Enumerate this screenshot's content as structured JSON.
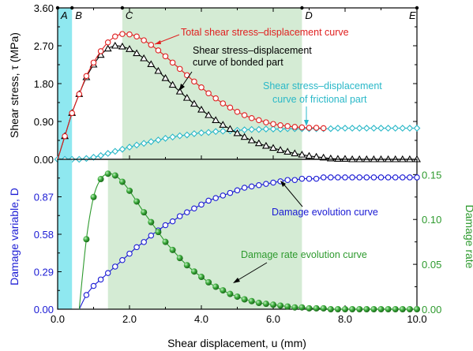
{
  "chart_data": [
    {
      "type": "line",
      "panel": "top",
      "ylabel": "Shear stress, τ (MPa)",
      "xlim": [
        0,
        10
      ],
      "ylim": [
        0,
        3.6
      ],
      "yticks": [
        "0.00",
        "0.90",
        "1.80",
        "2.70",
        "3.60"
      ],
      "stage_markers": [
        {
          "label": "A",
          "x": 0.0
        },
        {
          "label": "B",
          "x": 0.4
        },
        {
          "label": "C",
          "x": 1.8
        },
        {
          "label": "D",
          "x": 6.8
        },
        {
          "label": "E",
          "x": 10.0
        }
      ],
      "shaded_regions": [
        {
          "x0": 0.0,
          "x1": 0.4,
          "color": "#8fe8f0"
        },
        {
          "x0": 1.8,
          "x1": 6.8,
          "color": "#d4ebd4"
        }
      ],
      "series": [
        {
          "name": "Total shear stress–displacement curve",
          "color": "#e02020",
          "marker": "circle",
          "x": [
            0.0,
            0.2,
            0.4,
            0.6,
            0.8,
            1.0,
            1.2,
            1.4,
            1.6,
            1.8,
            2.0,
            2.2,
            2.4,
            2.6,
            2.8,
            3.0,
            3.2,
            3.4,
            3.6,
            3.8,
            4.0,
            4.2,
            4.4,
            4.6,
            4.8,
            5.0,
            5.2,
            5.4,
            5.6,
            5.8,
            6.0,
            6.2,
            6.4,
            6.6,
            6.8,
            7.0,
            7.2,
            7.4
          ],
          "y": [
            0.0,
            0.55,
            1.1,
            1.55,
            1.98,
            2.3,
            2.57,
            2.78,
            2.92,
            2.98,
            2.97,
            2.92,
            2.83,
            2.72,
            2.59,
            2.45,
            2.3,
            2.15,
            2.0,
            1.85,
            1.71,
            1.57,
            1.45,
            1.33,
            1.23,
            1.13,
            1.05,
            0.98,
            0.93,
            0.88,
            0.84,
            0.81,
            0.79,
            0.77,
            0.76,
            0.75,
            0.75,
            0.74
          ]
        },
        {
          "name": "Shear stress–displacement curve of bonded part",
          "color": "#000000",
          "marker": "triangle",
          "x": [
            0.0,
            0.2,
            0.4,
            0.6,
            0.8,
            1.0,
            1.2,
            1.4,
            1.6,
            1.8,
            2.0,
            2.2,
            2.4,
            2.6,
            2.8,
            3.0,
            3.2,
            3.4,
            3.6,
            3.8,
            4.0,
            4.2,
            4.4,
            4.6,
            4.8,
            5.0,
            5.2,
            5.4,
            5.6,
            5.8,
            6.0,
            6.2,
            6.4,
            6.6,
            6.8,
            7.0,
            7.2,
            7.4,
            7.6,
            7.8,
            8.0,
            8.2,
            8.4,
            8.6,
            8.8,
            9.0,
            9.2,
            9.4,
            9.6,
            9.8,
            10.0
          ],
          "y": [
            0.0,
            0.55,
            1.1,
            1.55,
            1.95,
            2.25,
            2.48,
            2.63,
            2.7,
            2.68,
            2.62,
            2.52,
            2.4,
            2.26,
            2.1,
            1.93,
            1.77,
            1.61,
            1.46,
            1.32,
            1.18,
            1.05,
            0.93,
            0.82,
            0.72,
            0.62,
            0.53,
            0.45,
            0.38,
            0.32,
            0.27,
            0.22,
            0.18,
            0.14,
            0.11,
            0.08,
            0.06,
            0.04,
            0.02,
            0.01,
            0.01,
            0.0,
            0.0,
            0.0,
            0.0,
            0.0,
            0.0,
            0.0,
            0.0,
            0.0,
            0.0
          ]
        },
        {
          "name": "Shear stress–displacement curve of frictional part",
          "color": "#2ab8c8",
          "marker": "diamond",
          "x": [
            0.0,
            0.2,
            0.4,
            0.6,
            0.8,
            1.0,
            1.2,
            1.4,
            1.6,
            1.8,
            2.0,
            2.2,
            2.4,
            2.6,
            2.8,
            3.0,
            3.2,
            3.4,
            3.6,
            3.8,
            4.0,
            4.2,
            4.4,
            4.6,
            4.8,
            5.0,
            5.2,
            5.4,
            5.6,
            5.8,
            6.0,
            6.2,
            6.4,
            6.6,
            6.8,
            7.0,
            7.2,
            7.4,
            7.6,
            7.8,
            8.0,
            8.2,
            8.4,
            8.6,
            8.8,
            9.0,
            9.2,
            9.4,
            9.6,
            9.8,
            10.0
          ],
          "y": [
            0.0,
            0.0,
            0.0,
            0.0,
            0.02,
            0.05,
            0.09,
            0.14,
            0.19,
            0.24,
            0.29,
            0.34,
            0.38,
            0.42,
            0.46,
            0.5,
            0.53,
            0.56,
            0.58,
            0.61,
            0.63,
            0.64,
            0.66,
            0.67,
            0.68,
            0.69,
            0.7,
            0.71,
            0.71,
            0.72,
            0.72,
            0.72,
            0.73,
            0.73,
            0.73,
            0.73,
            0.73,
            0.73,
            0.73,
            0.74,
            0.74,
            0.74,
            0.74,
            0.74,
            0.74,
            0.74,
            0.74,
            0.74,
            0.74,
            0.74,
            0.74
          ]
        }
      ],
      "annotations": [
        {
          "text": "Total shear stress–displacement curve",
          "color": "#e02020"
        },
        {
          "text_lines": [
            "Shear stress–displacement",
            "curve of bonded part"
          ],
          "color": "#000000"
        },
        {
          "text_lines": [
            "Shear stress–displacement",
            "curve of frictional part"
          ],
          "color": "#2ab8c8"
        }
      ]
    },
    {
      "type": "line",
      "panel": "bottom",
      "xlabel": "Shear displacement, u (mm)",
      "xlim": [
        0,
        10
      ],
      "xticks": [
        "0.0",
        "2.0",
        "4.0",
        "6.0",
        "8.0",
        "10.0"
      ],
      "ylabel_left": "Damage variable, D",
      "ylim_left": [
        0,
        1.16
      ],
      "yticks_left": [
        "0.00",
        "0.29",
        "0.58",
        "0.87"
      ],
      "ylabel_right": "Damage rate",
      "ylim_right": [
        0,
        0.167
      ],
      "yticks_right": [
        "0.00",
        "0.05",
        "0.10",
        "0.15"
      ],
      "shaded_regions": [
        {
          "x0": 0.0,
          "x1": 0.4,
          "color": "#8fe8f0"
        },
        {
          "x0": 1.4,
          "x1": 6.8,
          "color": "#d4ebd4"
        }
      ],
      "series": [
        {
          "name": "Damage evolution curve",
          "axis": "left",
          "color": "#1a1ad4",
          "marker": "circle",
          "x": [
            0.6,
            0.8,
            1.0,
            1.2,
            1.4,
            1.6,
            1.8,
            2.0,
            2.2,
            2.4,
            2.6,
            2.8,
            3.0,
            3.2,
            3.4,
            3.6,
            3.8,
            4.0,
            4.2,
            4.4,
            4.6,
            4.8,
            5.0,
            5.2,
            5.4,
            5.6,
            5.8,
            6.0,
            6.2,
            6.4,
            6.6,
            6.8,
            7.0,
            7.2,
            7.4,
            7.6,
            7.8,
            8.0,
            8.2,
            8.4,
            8.6,
            8.8,
            9.0,
            9.2,
            9.4,
            9.6,
            9.8,
            10.0
          ],
          "y": [
            0.0,
            0.11,
            0.18,
            0.23,
            0.28,
            0.33,
            0.38,
            0.43,
            0.48,
            0.52,
            0.57,
            0.61,
            0.65,
            0.68,
            0.72,
            0.75,
            0.78,
            0.81,
            0.84,
            0.86,
            0.88,
            0.9,
            0.92,
            0.94,
            0.95,
            0.96,
            0.97,
            0.98,
            0.99,
            1.0,
            1.0,
            1.01,
            1.01,
            1.01,
            1.02,
            1.02,
            1.02,
            1.02,
            1.02,
            1.02,
            1.02,
            1.02,
            1.02,
            1.02,
            1.02,
            1.02,
            1.02,
            1.02
          ]
        },
        {
          "name": "Damage rate evolution curve",
          "axis": "right",
          "color": "#2e9a2e",
          "marker": "sphere",
          "x": [
            0.6,
            0.8,
            1.0,
            1.2,
            1.4,
            1.6,
            1.8,
            2.0,
            2.2,
            2.4,
            2.6,
            2.8,
            3.0,
            3.2,
            3.4,
            3.6,
            3.8,
            4.0,
            4.2,
            4.4,
            4.6,
            4.8,
            5.0,
            5.2,
            5.4,
            5.6,
            5.8,
            6.0,
            6.2,
            6.4,
            6.6,
            6.8,
            7.0,
            7.2,
            7.4,
            7.6,
            7.8,
            8.0,
            8.2,
            8.4,
            8.6,
            8.8,
            9.0,
            9.2,
            9.4,
            9.6,
            9.8,
            10.0
          ],
          "y": [
            0.0,
            0.078,
            0.125,
            0.145,
            0.151,
            0.149,
            0.142,
            0.132,
            0.12,
            0.108,
            0.097,
            0.086,
            0.075,
            0.066,
            0.057,
            0.049,
            0.042,
            0.036,
            0.03,
            0.025,
            0.021,
            0.017,
            0.014,
            0.011,
            0.009,
            0.007,
            0.006,
            0.005,
            0.004,
            0.003,
            0.002,
            0.002,
            0.001,
            0.001,
            0.001,
            0.0,
            0.0,
            0.0,
            0.0,
            0.0,
            0.0,
            0.0,
            0.0,
            0.0,
            0.0,
            0.0,
            0.0,
            0.0
          ]
        }
      ],
      "annotations": [
        {
          "text": "Damage evolution curve",
          "color": "#1a1ad4"
        },
        {
          "text": "Damage rate evolution curve",
          "color": "#2e9a2e"
        }
      ]
    }
  ]
}
